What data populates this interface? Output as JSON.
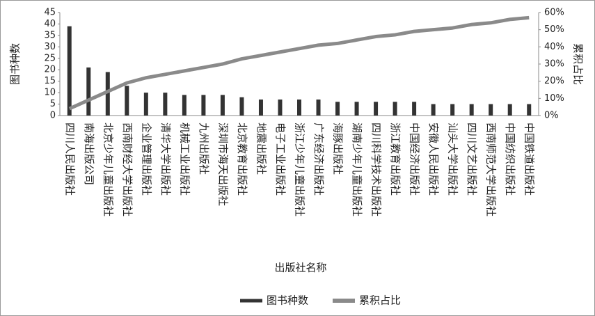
{
  "chart_data": {
    "type": "bar_line",
    "x_label": "出版社名称",
    "y_label": "图书种数",
    "y2_label": "累积占比",
    "categories": [
      "四川人民出版社",
      "南海出版公司",
      "北京少年儿童出版社",
      "西南财经大学出版社",
      "企业管理出版社",
      "清华大学出版社",
      "机械工业出版社",
      "九州出版社",
      "深圳市海天出版社",
      "北京教育出版社",
      "地震出版社",
      "电子工业出版社",
      "浙江少年儿童出版社",
      "广东经济出版社",
      "海豚出版社",
      "湖南少年儿童出版社",
      "四川科学技术出版社",
      "浙江教育出版社",
      "中国经济出版社",
      "安徽人民出版社",
      "汕头大学出版社",
      "四川文艺出版社",
      "西南师范大学出版社",
      "中国纺织出版社",
      "中国铁道出版社"
    ],
    "series": [
      {
        "name": "图书种数",
        "color": "#333333",
        "type": "bar",
        "values": [
          39,
          21,
          19,
          13,
          10,
          10,
          9,
          9,
          9,
          8,
          7,
          7,
          7,
          7,
          6,
          6,
          6,
          6,
          6,
          5,
          5,
          5,
          5,
          5,
          5
        ]
      },
      {
        "name": "累积占比",
        "color": "#8a8a8a",
        "type": "line",
        "axis": "y2",
        "values": [
          4,
          9,
          14,
          19,
          22,
          24,
          26,
          28,
          30,
          33,
          35,
          37,
          39,
          41,
          42,
          44,
          46,
          47,
          49,
          50,
          51,
          53,
          54,
          56,
          57
        ]
      }
    ],
    "ylim": [
      0,
      45
    ],
    "yticks": [
      0,
      5,
      10,
      15,
      20,
      25,
      30,
      35,
      40,
      45
    ],
    "y2lim": [
      0,
      60
    ],
    "y2ticks": [
      {
        "value": 0,
        "label": "0%"
      },
      {
        "value": 10,
        "label": "10%"
      },
      {
        "value": 20,
        "label": "20%"
      },
      {
        "value": 30,
        "label": "30%"
      },
      {
        "value": 40,
        "label": "40%"
      },
      {
        "value": 50,
        "label": "50%"
      },
      {
        "value": 60,
        "label": "60%"
      }
    ],
    "legend": "bottom"
  }
}
